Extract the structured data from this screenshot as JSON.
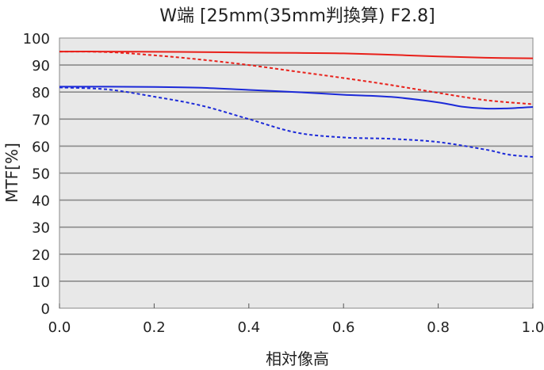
{
  "chart_data": {
    "type": "line",
    "title": "W端 [25mm(35mm判換算) F2.8]",
    "xlabel": "相対像高",
    "ylabel": "MTF[%]",
    "xlim": [
      0,
      1
    ],
    "ylim": [
      0,
      100
    ],
    "xticks": [
      "0.0",
      "0.2",
      "0.4",
      "0.6",
      "0.8",
      "1.0"
    ],
    "yticks": [
      "0",
      "10",
      "20",
      "30",
      "40",
      "50",
      "60",
      "70",
      "80",
      "90",
      "100"
    ],
    "grid": "horizontal",
    "legend": "none",
    "series": [
      {
        "color": "#e8201a",
        "style": "solid",
        "x": [
          0.0,
          0.1,
          0.2,
          0.3,
          0.4,
          0.5,
          0.6,
          0.7,
          0.8,
          0.9,
          1.0
        ],
        "y": [
          95.0,
          95.0,
          94.9,
          94.8,
          94.6,
          94.5,
          94.3,
          93.8,
          93.2,
          92.7,
          92.5
        ]
      },
      {
        "color": "#e8201a",
        "style": "dashed",
        "x": [
          0.0,
          0.1,
          0.2,
          0.3,
          0.4,
          0.5,
          0.6,
          0.7,
          0.8,
          0.9,
          1.0
        ],
        "y": [
          95.0,
          94.8,
          93.6,
          92.0,
          90.0,
          87.6,
          85.2,
          82.6,
          79.7,
          77.0,
          75.5
        ]
      },
      {
        "color": "#1c2ad8",
        "style": "solid",
        "x": [
          0.0,
          0.1,
          0.2,
          0.3,
          0.4,
          0.5,
          0.6,
          0.7,
          0.8,
          0.85,
          0.9,
          0.95,
          1.0
        ],
        "y": [
          82.0,
          82.0,
          81.9,
          81.6,
          80.8,
          80.0,
          79.0,
          78.2,
          76.2,
          74.6,
          73.9,
          74.0,
          74.5
        ]
      },
      {
        "color": "#1c2ad8",
        "style": "dashed",
        "x": [
          0.0,
          0.1,
          0.2,
          0.3,
          0.4,
          0.5,
          0.6,
          0.7,
          0.8,
          0.9,
          0.95,
          1.0
        ],
        "y": [
          81.7,
          81.0,
          78.3,
          75.0,
          70.0,
          65.0,
          63.2,
          62.7,
          61.5,
          58.7,
          56.8,
          56.0
        ]
      }
    ]
  }
}
